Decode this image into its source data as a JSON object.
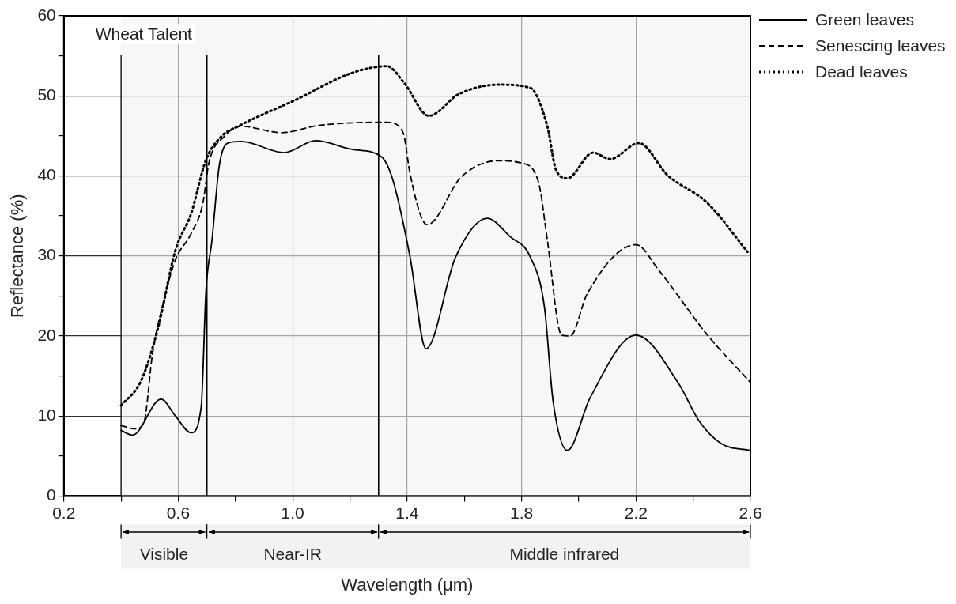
{
  "chart_data": {
    "type": "line",
    "xlabel": "Wavelength (μm)",
    "ylabel": "Reflectance (%)",
    "annotations": [
      "Wheat Talent"
    ],
    "xlim": [
      0.2,
      2.6
    ],
    "xticks": [
      0.2,
      {
        "value": 0.4,
        "label": null
      },
      0.6,
      {
        "value": 0.8,
        "label": null
      },
      {
        "value": 1.0,
        "label": "1.0"
      },
      {
        "value": 1.2,
        "label": null
      },
      1.4,
      {
        "value": 1.6,
        "label": null
      },
      1.8,
      {
        "value": 2.0,
        "label": null
      },
      2.2,
      {
        "value": 2.4,
        "label": null
      },
      2.6
    ],
    "ylim": [
      0,
      60
    ],
    "yticks": [
      0,
      {
        "value": 5,
        "label": null
      },
      10,
      {
        "value": 15,
        "label": null
      },
      20,
      {
        "value": 25,
        "label": null
      },
      30,
      {
        "value": 35,
        "label": null
      },
      40,
      {
        "value": 45,
        "label": null
      },
      50,
      {
        "value": 55,
        "label": null
      },
      60
    ],
    "grid": true,
    "legend": "top right",
    "marker": "none",
    "bands": [
      {
        "axis": "x",
        "from": 0.4,
        "to": 0.7,
        "label": "Visible",
        "color": "#f2f2f2"
      },
      {
        "axis": "x",
        "from": 0.7,
        "to": 1.3,
        "label": "Near-IR",
        "color": "#f2f2f2"
      },
      {
        "axis": "x",
        "from": 1.3,
        "to": 2.6,
        "label": "Middle infrared",
        "color": "#f2f2f2"
      }
    ],
    "series": [
      {
        "name": "Green leaves",
        "color": "#000000",
        "line_style": "solid",
        "x": [
          0.4,
          0.44,
          0.54,
          0.59,
          0.645,
          0.68,
          0.697,
          0.718,
          0.743,
          0.774,
          0.82,
          0.97,
          1.08,
          1.21,
          1.31,
          1.35,
          1.41,
          1.466,
          1.57,
          1.68,
          1.76,
          1.83,
          1.88,
          1.91,
          1.96,
          2.04,
          2.2,
          2.35,
          2.42,
          2.5,
          2.6
        ],
        "values": [
          8.2,
          7.6,
          12.1,
          10,
          7.9,
          11.1,
          25.7,
          32,
          41.2,
          44.1,
          44.3,
          42.9,
          44.4,
          43.3,
          42.4,
          39.5,
          29.9,
          18.4,
          29.9,
          34.7,
          32.4,
          29.9,
          23.6,
          11.9,
          5.7,
          12.3,
          20.1,
          14,
          9.4,
          6.5,
          5.7
        ]
      },
      {
        "name": "Senescing leaves",
        "color": "#000000",
        "line_style": "dashed",
        "x": [
          0.4,
          0.45,
          0.48,
          0.51,
          0.55,
          0.59,
          0.645,
          0.686,
          0.707,
          0.76,
          0.82,
          0.96,
          1.09,
          1.33,
          1.38,
          1.39,
          1.41,
          1.47,
          1.59,
          1.72,
          1.8,
          1.86,
          1.89,
          1.94,
          1.97,
          2.03,
          2.2,
          2.28,
          2.45,
          2.6
        ],
        "values": [
          8.8,
          8.4,
          9.2,
          17.8,
          24.5,
          29.5,
          32.8,
          36.6,
          41.6,
          44.9,
          46.2,
          45.4,
          46.3,
          46.7,
          45.8,
          44.9,
          40.3,
          33.9,
          39.9,
          41.9,
          41.6,
          39.1,
          32,
          20.1,
          20,
          25.3,
          31.4,
          28.2,
          20.1,
          14.2
        ]
      },
      {
        "name": "Dead leaves",
        "color": "#000000",
        "line_style": "dotted",
        "x": [
          0.4,
          0.47,
          0.53,
          0.59,
          0.645,
          0.697,
          0.75,
          0.81,
          1.01,
          1.21,
          1.33,
          1.39,
          1.476,
          1.58,
          1.72,
          1.83,
          1.89,
          1.92,
          1.96,
          2.05,
          2.11,
          2.21,
          2.31,
          2.45,
          2.59
        ],
        "values": [
          11.3,
          14.4,
          21.1,
          30.7,
          35.3,
          42,
          44.9,
          46.2,
          49.5,
          52.9,
          53.7,
          51.6,
          47.5,
          50.2,
          51.4,
          51,
          46.2,
          40.8,
          39.7,
          42.9,
          42.1,
          44.1,
          40.1,
          36.6,
          30.5
        ]
      }
    ]
  }
}
